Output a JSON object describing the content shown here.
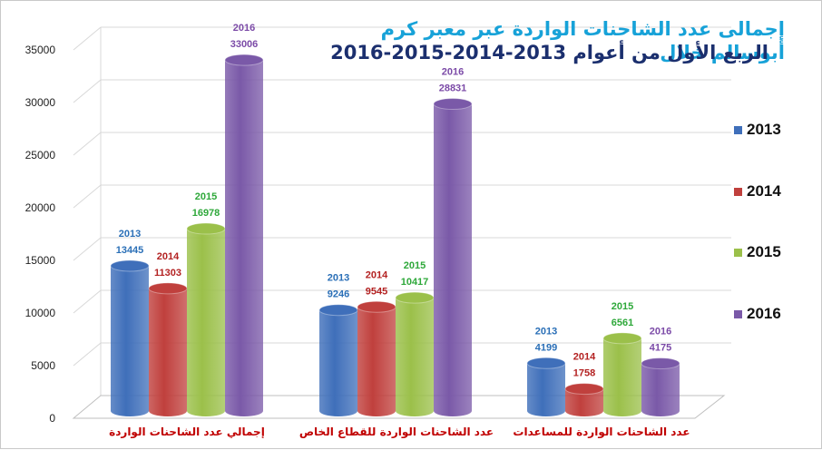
{
  "chart_data": {
    "type": "bar",
    "title": "إجمالى عدد الشاحنات الواردة عبر معبر كرم أبوسالم خلال",
    "subtitle": "الربع الأول من أعوام 2013-2014-2015-2016",
    "categories": [
      "إجمالي عدد الشاحنات الواردة",
      "عدد الشاحنات الواردة للقطاع الخاص",
      "عدد الشاحنات الواردة للمساعدات"
    ],
    "series": [
      {
        "name": "2013",
        "values": [
          13445,
          9246,
          4199
        ],
        "color": "#3f6fba",
        "label_color": "#2a6fb7"
      },
      {
        "name": "2014",
        "values": [
          11303,
          9545,
          1758
        ],
        "color": "#c0403d",
        "label_color": "#b32121"
      },
      {
        "name": "2015",
        "values": [
          16978,
          10417,
          6561
        ],
        "color": "#9bc04a",
        "label_color": "#2ea83a"
      },
      {
        "name": "2016",
        "values": [
          33006,
          28831,
          4175
        ],
        "color": "#7a59a8",
        "label_color": "#7b4aa7"
      }
    ],
    "y_ticks": [
      "0",
      "5000",
      "10000",
      "15000",
      "20000",
      "25000",
      "30000",
      "35000"
    ],
    "ylim": [
      0,
      35000
    ],
    "grid": true,
    "legend_position": "right",
    "category_label_color": "#c00000"
  }
}
